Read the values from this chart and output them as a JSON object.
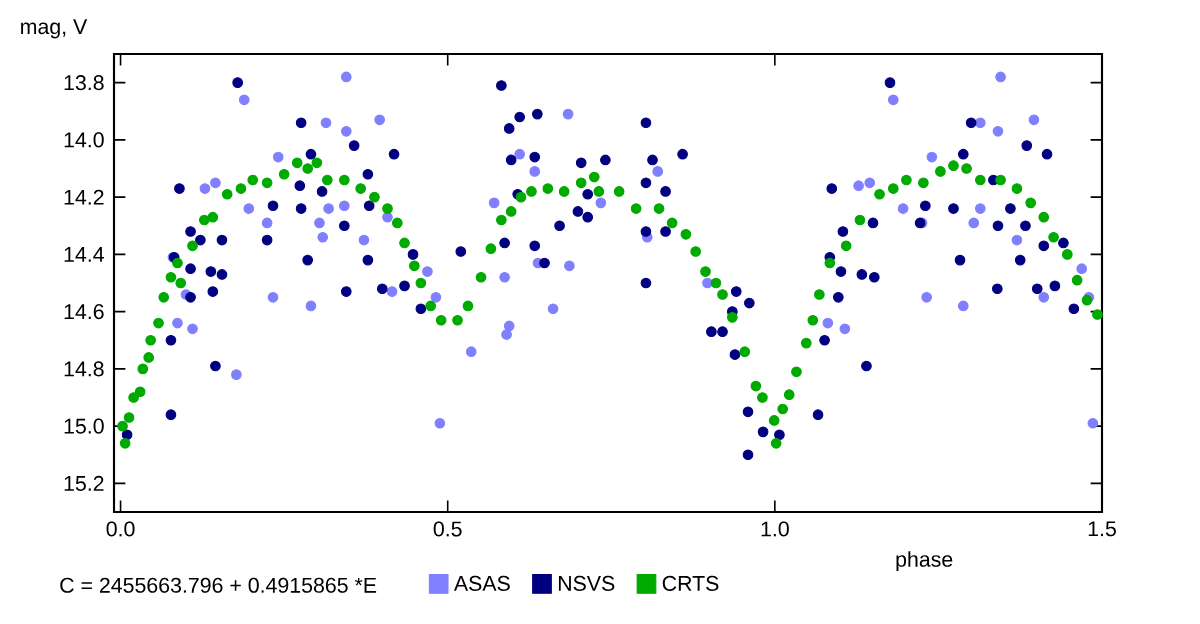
{
  "chart_data": {
    "type": "scatter",
    "xlabel": "phase",
    "ylabel": "mag, V",
    "xlim": [
      -0.01,
      1.5
    ],
    "ylim": [
      15.3,
      13.7
    ],
    "xticks": [
      {
        "value": 0,
        "label": "0.0"
      },
      {
        "value": 0.5,
        "label": "0.5"
      },
      {
        "value": 1.0,
        "label": "1.0"
      },
      {
        "value": 1.5,
        "label": "1.5"
      }
    ],
    "yticks": [
      {
        "value": 13.8,
        "label": "13.8"
      },
      {
        "value": 14.0,
        "label": "14.0"
      },
      {
        "value": 14.2,
        "label": "14.2"
      },
      {
        "value": 14.4,
        "label": "14.4"
      },
      {
        "value": 14.6,
        "label": "14.6"
      },
      {
        "value": 14.8,
        "label": "14.8"
      },
      {
        "value": 15.0,
        "label": "15.0"
      },
      {
        "value": 15.2,
        "label": "15.2"
      }
    ],
    "grid": false,
    "legend": "bottom",
    "marker": "circle",
    "annotations": [
      "C = 2455663.796 + 0.4915865 *E"
    ],
    "series": [
      {
        "name": "ASAS",
        "color": "#8080ff",
        "x": [
          0.189,
          0.345,
          0.345,
          0.314,
          0.396,
          0.241,
          0.145,
          0.129,
          0.196,
          0.224,
          0.342,
          0.318,
          0.304,
          0.309,
          0.372,
          0.408,
          0.415,
          0.233,
          0.291,
          0.177,
          0.1,
          0.087,
          0.11,
          0.08,
          0.469,
          0.482,
          0.488,
          0.536,
          0.571,
          0.59,
          0.594,
          0.587,
          0.61,
          0.633,
          0.638,
          0.661,
          0.684,
          0.686,
          0.734,
          0.805,
          0.821,
          0.897,
          1.081,
          1.107,
          1.128,
          1.145,
          1.181,
          1.24,
          1.196,
          1.225,
          1.232,
          1.288,
          1.304,
          1.314,
          1.314,
          1.341,
          1.345,
          1.396,
          1.37,
          1.411,
          1.469,
          1.48,
          1.486
        ],
        "values": [
          13.86,
          13.78,
          13.97,
          13.94,
          13.93,
          14.06,
          14.15,
          14.17,
          14.24,
          14.29,
          14.23,
          14.24,
          14.29,
          14.34,
          14.35,
          14.27,
          14.53,
          14.55,
          14.58,
          14.82,
          14.54,
          14.64,
          14.66,
          14.41,
          14.46,
          14.55,
          14.99,
          14.74,
          14.22,
          14.68,
          14.65,
          14.48,
          14.05,
          14.11,
          14.43,
          14.59,
          13.91,
          14.44,
          14.22,
          14.34,
          14.11,
          14.5,
          14.64,
          14.66,
          14.16,
          14.15,
          13.86,
          14.06,
          14.24,
          14.29,
          14.55,
          14.58,
          14.29,
          14.24,
          13.94,
          13.97,
          13.78,
          13.93,
          14.35,
          14.55,
          14.45,
          14.55,
          14.99
        ]
      },
      {
        "name": "NSVS",
        "color": "#000080",
        "x": [
          0.179,
          0.09,
          0.082,
          0.077,
          0.01,
          0.077,
          0.107,
          0.107,
          0.107,
          0.122,
          0.138,
          0.141,
          0.145,
          0.155,
          0.155,
          0.233,
          0.224,
          0.276,
          0.291,
          0.274,
          0.276,
          0.308,
          0.286,
          0.345,
          0.342,
          0.357,
          0.378,
          0.38,
          0.378,
          0.418,
          0.4,
          0.434,
          0.447,
          0.459,
          0.52,
          0.582,
          0.594,
          0.61,
          0.637,
          0.597,
          0.633,
          0.607,
          0.587,
          0.633,
          0.648,
          0.704,
          0.699,
          0.714,
          0.671,
          0.714,
          0.803,
          0.741,
          0.813,
          0.859,
          0.803,
          0.833,
          0.803,
          0.833,
          0.803,
          0.903,
          0.92,
          0.941,
          0.935,
          0.961,
          0.939,
          0.959,
          0.982,
          1.007,
          0.959,
          1.066,
          1.087,
          1.084,
          1.101,
          1.097,
          1.076,
          1.104,
          1.133,
          1.152,
          1.14,
          1.15,
          1.176,
          1.23,
          1.222,
          1.273,
          1.283,
          1.288,
          1.3,
          1.334,
          1.341,
          1.34,
          1.36,
          1.375,
          1.385,
          1.383,
          1.401,
          1.411,
          1.416,
          1.428,
          1.441,
          1.457
        ],
        "values": [
          13.8,
          14.17,
          14.41,
          14.96,
          15.03,
          14.7,
          14.32,
          14.45,
          14.55,
          14.35,
          14.46,
          14.53,
          14.79,
          14.35,
          14.47,
          14.23,
          14.35,
          13.94,
          14.05,
          14.16,
          14.24,
          14.18,
          14.42,
          14.53,
          14.3,
          14.02,
          14.12,
          14.23,
          14.42,
          14.05,
          14.52,
          14.51,
          14.4,
          14.59,
          14.39,
          13.81,
          13.96,
          13.92,
          13.91,
          14.07,
          14.06,
          14.19,
          14.36,
          14.37,
          14.43,
          14.08,
          14.25,
          14.27,
          14.3,
          14.19,
          13.94,
          14.07,
          14.07,
          14.05,
          14.15,
          14.18,
          14.32,
          14.32,
          14.5,
          14.67,
          14.67,
          14.53,
          14.6,
          14.57,
          14.75,
          14.95,
          15.02,
          15.03,
          15.1,
          14.96,
          14.17,
          14.41,
          14.46,
          14.55,
          14.7,
          14.32,
          14.47,
          14.48,
          14.79,
          14.29,
          13.8,
          14.23,
          14.29,
          14.24,
          14.42,
          14.05,
          13.94,
          14.14,
          14.3,
          14.52,
          14.24,
          14.42,
          14.02,
          14.3,
          14.52,
          14.37,
          14.05,
          14.51,
          14.36,
          14.59
        ]
      },
      {
        "name": "CRTS",
        "color": "#00aa00",
        "x": [
          0.003,
          0.007,
          0.013,
          0.02,
          0.03,
          0.034,
          0.043,
          0.046,
          0.058,
          0.066,
          0.077,
          0.087,
          0.092,
          0.11,
          0.128,
          0.141,
          0.163,
          0.184,
          0.202,
          0.224,
          0.25,
          0.27,
          0.286,
          0.3,
          0.316,
          0.342,
          0.367,
          0.388,
          0.408,
          0.423,
          0.434,
          0.449,
          0.459,
          0.474,
          0.49,
          0.515,
          0.531,
          0.551,
          0.566,
          0.582,
          0.597,
          0.612,
          0.628,
          0.653,
          0.678,
          0.704,
          0.724,
          0.731,
          0.762,
          0.788,
          0.823,
          0.843,
          0.864,
          0.879,
          0.894,
          0.91,
          0.92,
          0.935,
          0.954,
          0.971,
          0.981,
          0.999,
          1.002,
          1.012,
          1.022,
          1.033,
          1.048,
          1.058,
          1.068,
          1.084,
          1.109,
          1.13,
          1.16,
          1.181,
          1.201,
          1.227,
          1.253,
          1.273,
          1.293,
          1.314,
          1.345,
          1.37,
          1.391,
          1.411,
          1.426,
          1.447,
          1.462,
          1.477,
          1.493
        ],
        "values": [
          15.0,
          15.06,
          14.97,
          14.9,
          14.88,
          14.8,
          14.76,
          14.7,
          14.64,
          14.55,
          14.48,
          14.43,
          14.5,
          14.37,
          14.28,
          14.27,
          14.19,
          14.17,
          14.14,
          14.15,
          14.12,
          14.08,
          14.1,
          14.08,
          14.14,
          14.14,
          14.17,
          14.2,
          14.24,
          14.29,
          14.36,
          14.44,
          14.5,
          14.58,
          14.63,
          14.63,
          14.58,
          14.48,
          14.38,
          14.28,
          14.25,
          14.2,
          14.18,
          14.17,
          14.18,
          14.15,
          14.13,
          14.18,
          14.18,
          14.24,
          14.24,
          14.29,
          14.33,
          14.39,
          14.46,
          14.5,
          14.54,
          14.62,
          14.74,
          14.86,
          14.9,
          14.98,
          15.06,
          14.94,
          14.89,
          14.81,
          14.71,
          14.63,
          14.54,
          14.43,
          14.37,
          14.28,
          14.19,
          14.17,
          14.14,
          14.15,
          14.11,
          14.09,
          14.1,
          14.14,
          14.14,
          14.17,
          14.22,
          14.27,
          14.34,
          14.4,
          14.49,
          14.56,
          14.61
        ]
      }
    ]
  }
}
